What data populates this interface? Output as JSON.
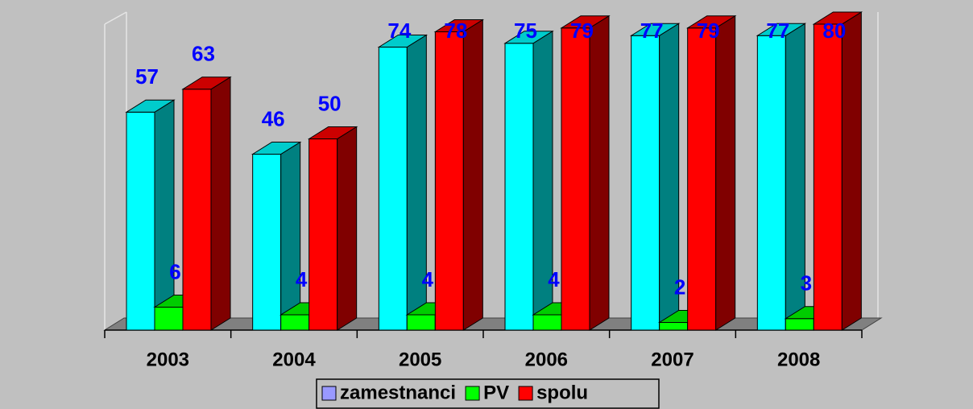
{
  "chart_data": {
    "type": "bar3d",
    "categories": [
      "2003",
      "2004",
      "2005",
      "2006",
      "2007",
      "2008"
    ],
    "series": [
      {
        "name": "zamestnanci",
        "color": "#00ffff",
        "legend_color": "#9999ff",
        "values": [
          57,
          46,
          74,
          75,
          77,
          77
        ]
      },
      {
        "name": "PV",
        "color": "#00ff00",
        "values": [
          6,
          4,
          4,
          4,
          2,
          3
        ]
      },
      {
        "name": "spolu",
        "color": "#ff0000",
        "values": [
          63,
          50,
          78,
          79,
          79,
          80
        ]
      }
    ],
    "ylim": [
      0,
      80
    ],
    "legend": "bottom"
  }
}
